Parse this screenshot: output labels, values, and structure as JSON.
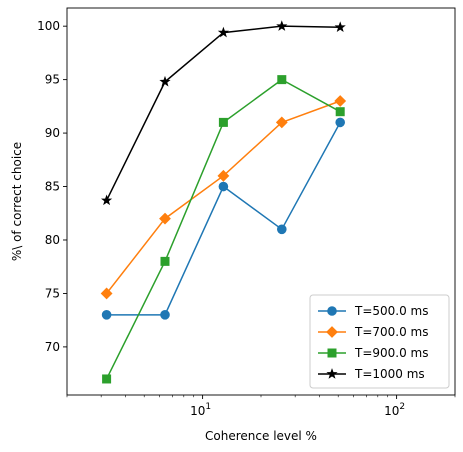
{
  "chart_data": {
    "type": "line",
    "xlabel": "Coherence level %",
    "ylabel": "%\\ of correct choice",
    "xscale": "log",
    "xlim": [
      2,
      200
    ],
    "ylim": [
      65.5,
      101.7
    ],
    "x_ticks": [
      {
        "value": 10,
        "base": "10",
        "exp": "1"
      },
      {
        "value": 100,
        "base": "10",
        "exp": "2"
      }
    ],
    "y_ticks": [
      70,
      75,
      80,
      85,
      90,
      95,
      100
    ],
    "x": [
      3.2,
      6.4,
      12.8,
      25.6,
      51.2
    ],
    "legend_position": "lower right",
    "grid": false,
    "series": [
      {
        "name": "T=500.0 ms",
        "color": "#1f77b4",
        "marker": "circle",
        "values": [
          73,
          73,
          85,
          81,
          91
        ]
      },
      {
        "name": "T=700.0 ms",
        "color": "#ff7f0e",
        "marker": "diamond",
        "values": [
          75,
          82,
          86,
          91,
          93
        ]
      },
      {
        "name": "T=900.0 ms",
        "color": "#2ca02c",
        "marker": "square",
        "values": [
          67,
          78,
          91,
          95,
          92
        ]
      },
      {
        "name": "T=1000 ms",
        "color": "#000000",
        "marker": "star",
        "values": [
          83.7,
          94.8,
          99.4,
          100,
          99.9
        ]
      }
    ]
  }
}
